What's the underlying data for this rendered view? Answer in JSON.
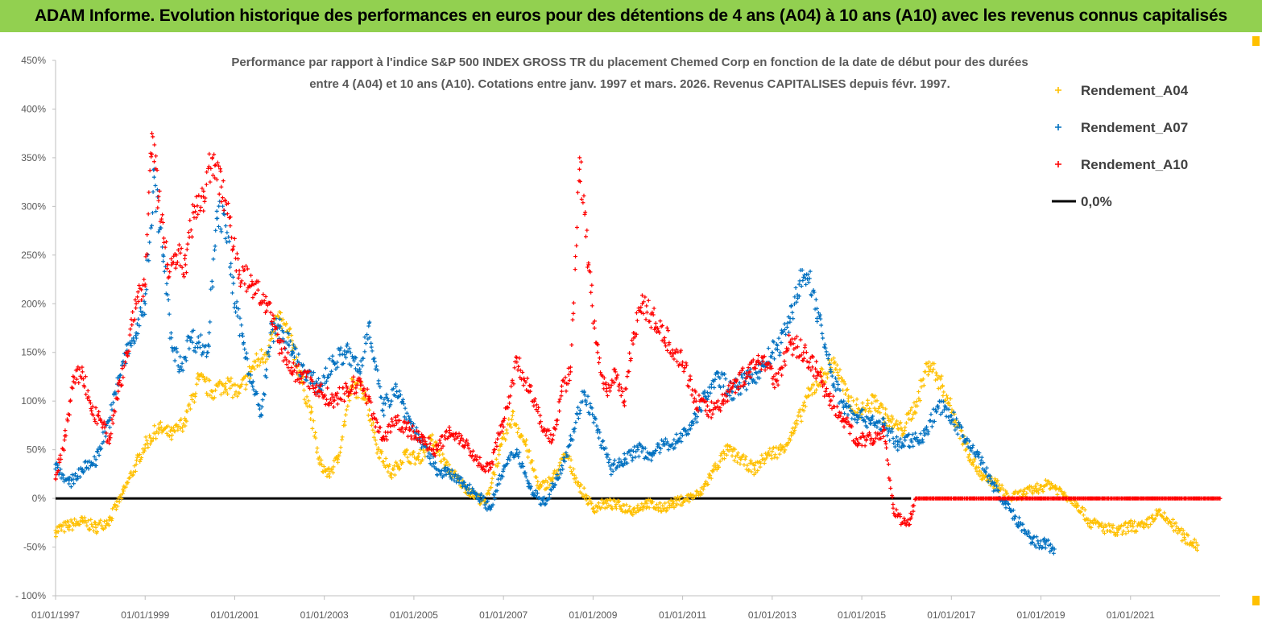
{
  "header": {
    "title": "ADAM Informe. Evolution historique des performances en euros pour des détentions de 4 ans (A04) à 10 ans (A10) avec les revenus connus capitalisés"
  },
  "colors": {
    "banner": "#92d050",
    "A04": "#ffc000",
    "A07": "#0070c0",
    "A10": "#ff0000",
    "zero": "#000000"
  },
  "chart_data": {
    "type": "scatter",
    "title_line1": "Performance par rapport à l'indice S&P 500 INDEX GROSS TR  du placement Chemed Corp en fonction de la date de début pour des durées",
    "title_line2": "entre 4 (A04) et 10 ans (A10). Cotations entre janv. 1997 et mars. 2026. Revenus CAPITALISES depuis févr. 1997.",
    "ylim": [
      -100,
      450
    ],
    "yticks": [
      "- 100%",
      "-50%",
      "0%",
      "50%",
      "100%",
      "150%",
      "200%",
      "250%",
      "300%",
      "350%",
      "400%",
      "450%"
    ],
    "ytick_values": [
      -100,
      -50,
      0,
      50,
      100,
      150,
      200,
      250,
      300,
      350,
      400,
      450
    ],
    "xlim": [
      1997.0,
      2023.0
    ],
    "xticks": [
      "01/01/1997",
      "01/01/1999",
      "01/01/2001",
      "01/01/2003",
      "01/01/2005",
      "01/01/2007",
      "01/01/2009",
      "01/01/2011",
      "01/01/2013",
      "01/01/2015",
      "01/01/2017",
      "01/01/2019",
      "01/01/2021"
    ],
    "xtick_values": [
      1997,
      1999,
      2001,
      2003,
      2005,
      2007,
      2009,
      2011,
      2013,
      2015,
      2017,
      2019,
      2021
    ],
    "legend_position": "top-right",
    "series": [
      {
        "name": "Rendement_A04",
        "x": [
          1997.0,
          1997.3,
          1997.6,
          1997.9,
          1998.2,
          1998.5,
          1998.8,
          1999.0,
          1999.3,
          1999.6,
          1999.9,
          2000.2,
          2000.5,
          2000.8,
          2001.1,
          2001.4,
          2001.7,
          2002.0,
          2002.3,
          2002.5,
          2002.7,
          2002.9,
          2003.1,
          2003.3,
          2003.6,
          2003.9,
          2004.2,
          2004.5,
          2004.8,
          2005.1,
          2005.4,
          2005.7,
          2006.0,
          2006.3,
          2006.6,
          2006.9,
          2007.2,
          2007.5,
          2007.8,
          2008.1,
          2008.4,
          2008.7,
          2009.0,
          2009.3,
          2009.6,
          2009.9,
          2010.2,
          2010.5,
          2010.8,
          2011.1,
          2011.4,
          2011.7,
          2012.0,
          2012.3,
          2012.6,
          2012.9,
          2013.2,
          2013.5,
          2013.8,
          2014.1,
          2014.4,
          2014.7,
          2015.0,
          2015.3,
          2015.6,
          2015.9,
          2016.2,
          2016.5,
          2016.8,
          2017.1,
          2017.4,
          2017.7,
          2018.0,
          2018.3,
          2018.6,
          2018.9,
          2019.2,
          2019.5,
          2019.8,
          2020.1,
          2020.4,
          2020.7,
          2021.0,
          2021.3,
          2021.6,
          2021.9,
          2022.2,
          2022.5
        ],
        "values": [
          -33,
          -28,
          -24,
          -30,
          -22,
          5,
          35,
          55,
          72,
          65,
          80,
          122,
          110,
          118,
          108,
          135,
          150,
          185,
          158,
          120,
          88,
          35,
          25,
          40,
          115,
          110,
          50,
          25,
          45,
          40,
          60,
          35,
          18,
          5,
          -5,
          45,
          85,
          55,
          10,
          20,
          45,
          12,
          -10,
          -5,
          -8,
          -12,
          -5,
          -10,
          -5,
          0,
          5,
          30,
          50,
          40,
          30,
          45,
          50,
          70,
          105,
          125,
          140,
          100,
          90,
          100,
          80,
          70,
          95,
          140,
          115,
          80,
          45,
          20,
          15,
          0,
          5,
          10,
          15,
          5,
          -5,
          -25,
          -30,
          -35,
          -28,
          -30,
          -15,
          -25,
          -40,
          -48
        ]
      },
      {
        "name": "Rendement_A07",
        "x": [
          1997.0,
          1997.3,
          1997.6,
          1997.9,
          1998.2,
          1998.5,
          1998.8,
          1999.0,
          1999.2,
          1999.4,
          1999.6,
          1999.8,
          2000.0,
          2000.2,
          2000.4,
          2000.6,
          2000.8,
          2001.0,
          2001.2,
          2001.4,
          2001.6,
          2001.8,
          2002.0,
          2002.3,
          2002.6,
          2002.9,
          2003.2,
          2003.5,
          2003.8,
          2004.0,
          2004.3,
          2004.6,
          2004.9,
          2005.2,
          2005.5,
          2005.8,
          2006.1,
          2006.4,
          2006.7,
          2007.0,
          2007.3,
          2007.6,
          2007.9,
          2008.2,
          2008.5,
          2008.8,
          2009.1,
          2009.4,
          2009.7,
          2010.0,
          2010.3,
          2010.6,
          2010.9,
          2011.2,
          2011.5,
          2011.8,
          2012.1,
          2012.4,
          2012.7,
          2013.0,
          2013.2,
          2013.4,
          2013.6,
          2013.8,
          2014.0,
          2014.3,
          2014.6,
          2014.9,
          2015.2,
          2015.5,
          2015.8,
          2016.1,
          2016.4,
          2016.7,
          2017.0,
          2017.3,
          2017.6,
          2017.9,
          2018.2,
          2018.5,
          2018.8,
          2019.1,
          2019.3
        ],
        "values": [
          35,
          15,
          30,
          40,
          80,
          140,
          170,
          200,
          330,
          250,
          155,
          135,
          165,
          160,
          150,
          295,
          280,
          200,
          160,
          115,
          85,
          170,
          175,
          150,
          125,
          115,
          140,
          150,
          130,
          180,
          90,
          115,
          80,
          55,
          30,
          25,
          15,
          5,
          -10,
          30,
          50,
          10,
          -5,
          20,
          60,
          110,
          70,
          30,
          40,
          50,
          45,
          55,
          60,
          75,
          105,
          125,
          110,
          120,
          130,
          150,
          160,
          185,
          220,
          230,
          195,
          130,
          95,
          85,
          80,
          75,
          55,
          60,
          65,
          95,
          85,
          60,
          45,
          15,
          -5,
          -25,
          -45,
          -47,
          -52
        ]
      },
      {
        "name": "Rendement_A10",
        "x": [
          1997.0,
          1997.2,
          1997.4,
          1997.6,
          1997.8,
          1998.0,
          1998.2,
          1998.4,
          1998.6,
          1998.8,
          1999.0,
          1999.15,
          1999.3,
          1999.5,
          1999.7,
          1999.9,
          2000.1,
          2000.3,
          2000.5,
          2000.7,
          2000.9,
          2001.1,
          2001.4,
          2001.7,
          2002.0,
          2002.3,
          2002.6,
          2002.9,
          2003.2,
          2003.5,
          2003.8,
          2004.0,
          2004.3,
          2004.6,
          2004.9,
          2005.2,
          2005.5,
          2005.8,
          2006.1,
          2006.4,
          2006.7,
          2007.0,
          2007.3,
          2007.6,
          2007.9,
          2008.1,
          2008.3,
          2008.5,
          2008.7,
          2008.9,
          2009.1,
          2009.3,
          2009.5,
          2009.7,
          2009.9,
          2010.1,
          2010.4,
          2010.7,
          2011.0,
          2011.3,
          2011.6,
          2011.9,
          2012.2,
          2012.5,
          2012.8,
          2013.1,
          2013.4,
          2013.7,
          2014.0,
          2014.3,
          2014.6,
          2014.9,
          2015.2,
          2015.5,
          2015.7,
          2015.9,
          2016.1,
          2016.2,
          2016.6,
          2017.0,
          2017.5,
          2018.0,
          2018.5,
          2019.0,
          2019.5,
          2020.0,
          2020.5,
          2021.0,
          2021.5,
          2022.0,
          2022.5,
          2023.0
        ],
        "values": [
          20,
          60,
          120,
          130,
          90,
          80,
          60,
          110,
          150,
          200,
          220,
          375,
          310,
          240,
          250,
          240,
          300,
          310,
          350,
          320,
          280,
          230,
          220,
          200,
          160,
          130,
          125,
          110,
          100,
          110,
          120,
          100,
          60,
          80,
          70,
          60,
          50,
          70,
          60,
          40,
          30,
          80,
          140,
          110,
          70,
          60,
          110,
          130,
          350,
          240,
          150,
          110,
          130,
          100,
          170,
          200,
          180,
          160,
          140,
          100,
          90,
          100,
          120,
          130,
          145,
          120,
          160,
          150,
          130,
          100,
          80,
          60,
          60,
          70,
          -10,
          -25,
          -20,
          0,
          0,
          0,
          0,
          0,
          0,
          0,
          0,
          0,
          0,
          0,
          0,
          0,
          0,
          0
        ]
      },
      {
        "name": "0,0%",
        "x": [
          1997.0,
          2016.1
        ],
        "values": [
          0,
          0
        ]
      }
    ]
  }
}
